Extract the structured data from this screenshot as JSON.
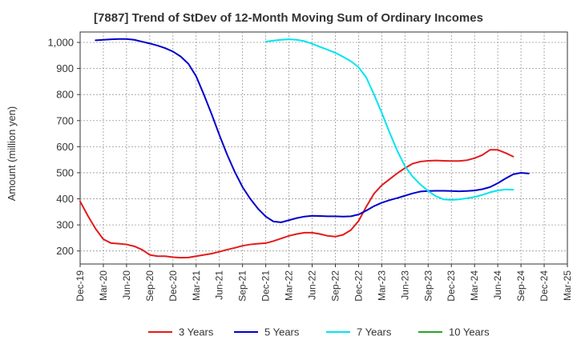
{
  "chart_data": {
    "type": "line",
    "title": "[7887]  Trend of StDev of 12-Month Moving Sum of Ordinary Incomes",
    "ylabel": "Amount (million yen)",
    "xlabel": "",
    "ylim": [
      150,
      1040
    ],
    "yticks": [
      200,
      300,
      400,
      500,
      600,
      700,
      800,
      900,
      1000
    ],
    "ytick_labels": [
      "200",
      "300",
      "400",
      "500",
      "600",
      "700",
      "800",
      "900",
      "1,000"
    ],
    "x_categories": [
      "Dec-19",
      "Mar-20",
      "Jun-20",
      "Sep-20",
      "Dec-20",
      "Mar-21",
      "Jun-21",
      "Sep-21",
      "Dec-21",
      "Mar-22",
      "Jun-22",
      "Sep-22",
      "Dec-22",
      "Mar-23",
      "Jun-23",
      "Sep-23",
      "Dec-23",
      "Mar-24",
      "Jun-24",
      "Sep-24",
      "Dec-24",
      "Mar-25"
    ],
    "grid": true,
    "legend_position": "bottom",
    "series": [
      {
        "name": "3 Years",
        "color": "#e31a1c",
        "start_index": 0,
        "values": [
          390,
          335,
          285,
          245,
          230,
          228,
          225,
          218,
          205,
          185,
          180,
          180,
          176,
          174,
          175,
          180,
          185,
          190,
          197,
          205,
          212,
          220,
          225,
          228,
          230,
          238,
          248,
          258,
          265,
          270,
          270,
          265,
          258,
          255,
          262,
          280,
          315,
          370,
          420,
          452,
          475,
          498,
          518,
          535,
          543,
          546,
          547,
          546,
          545,
          545,
          548,
          556,
          568,
          588,
          588,
          576,
          562
        ]
      },
      {
        "name": "5 Years",
        "color": "#0000cc",
        "start_index": 2,
        "values": [
          1008,
          1010,
          1012,
          1013,
          1013,
          1010,
          1003,
          996,
          988,
          978,
          965,
          946,
          918,
          870,
          800,
          725,
          645,
          570,
          503,
          445,
          400,
          362,
          332,
          313,
          310,
          318,
          326,
          332,
          335,
          334,
          333,
          333,
          332,
          333,
          340,
          355,
          372,
          385,
          395,
          403,
          412,
          421,
          428,
          430,
          431,
          431,
          430,
          429,
          430,
          432,
          437,
          445,
          460,
          478,
          494,
          500,
          497
        ]
      },
      {
        "name": "7 Years",
        "color": "#00e5ee",
        "start_index": 24,
        "values": [
          1003,
          1007,
          1010,
          1012,
          1010,
          1005,
          995,
          983,
          972,
          960,
          945,
          928,
          905,
          865,
          800,
          730,
          655,
          585,
          525,
          485,
          455,
          430,
          410,
          398,
          396,
          398,
          402,
          407,
          415,
          425,
          432,
          436,
          435
        ]
      },
      {
        "name": "10 Years",
        "color": "#2ca02c",
        "start_index": 0,
        "values": []
      }
    ]
  }
}
